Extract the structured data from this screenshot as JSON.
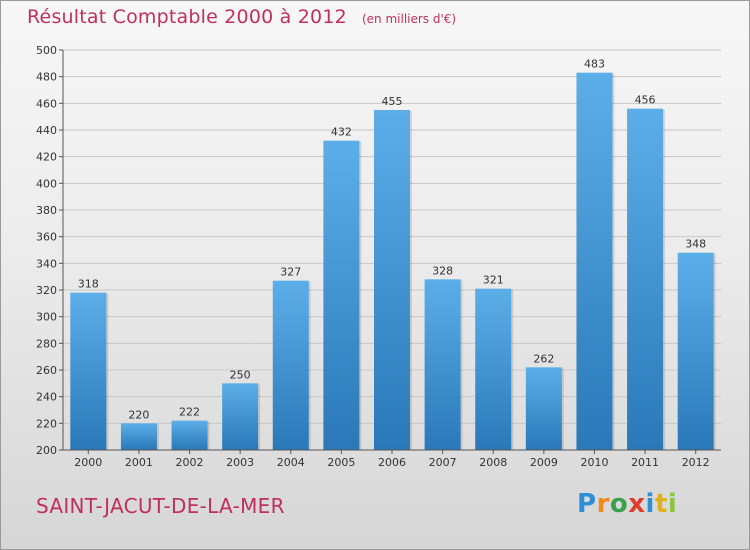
{
  "title": "Résultat Comptable 2000 à 2012",
  "subtitle": "(en milliers d'€)",
  "town": "SAINT-JACUT-DE-LA-MER",
  "logo": {
    "letters": [
      "P",
      "r",
      "o",
      "x",
      "i",
      "t",
      "i"
    ],
    "colors": [
      "#2d8fd5",
      "#f08a1c",
      "#3aa14a",
      "#e23b2a",
      "#2d8fd5",
      "#e0b21a",
      "#8cc63f"
    ]
  },
  "colors": {
    "title": "#c0305a",
    "bar_light": "#5caee8",
    "bar_dark": "#2a78b8",
    "grid": "#c8c8c8",
    "axis": "#555555"
  },
  "chart_data": {
    "type": "bar",
    "categories": [
      "2000",
      "2001",
      "2002",
      "2003",
      "2004",
      "2005",
      "2006",
      "2007",
      "2008",
      "2009",
      "2010",
      "2011",
      "2012"
    ],
    "values": [
      318,
      220,
      222,
      250,
      327,
      432,
      455,
      328,
      321,
      262,
      483,
      456,
      348
    ],
    "ylim": [
      200,
      500
    ],
    "yticks": [
      200,
      220,
      240,
      260,
      280,
      300,
      320,
      340,
      360,
      380,
      400,
      420,
      440,
      460,
      480,
      500
    ],
    "grid": true,
    "data_labels": true
  }
}
